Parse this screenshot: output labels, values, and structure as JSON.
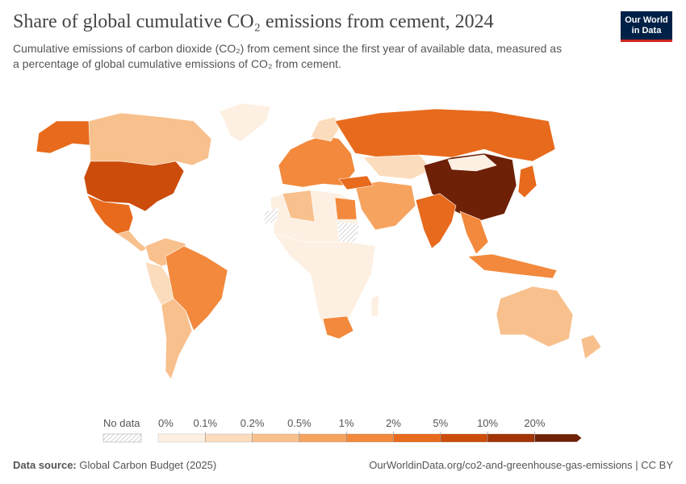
{
  "header": {
    "title": "Share of global cumulative CO₂ emissions from cement, 2024",
    "subtitle": [
      "Cumulative emissions of carbon dioxide (CO₂) from cement since the first year of available data, measured as",
      "a percentage of global cumulative emissions of CO₂ from cement."
    ],
    "logo": [
      "Our World",
      "in Data"
    ]
  },
  "legend": {
    "no_data": "No data",
    "ticks": [
      "0%",
      "0.1%",
      "0.2%",
      "0.5%",
      "1%",
      "2%",
      "5%",
      "10%",
      "20%"
    ],
    "colors": [
      "#fdf0e2",
      "#fbdcbc",
      "#f8c08d",
      "#f6a35f",
      "#f2893c",
      "#e86a1c",
      "#cc4c0b",
      "#a23405",
      "#6e2106"
    ]
  },
  "footer": {
    "source_label": "Data source:",
    "source": "Global Carbon Budget (2025)",
    "url": "OurWorldinData.org/co2-and-greenhouse-gas-emissions | CC BY"
  }
}
